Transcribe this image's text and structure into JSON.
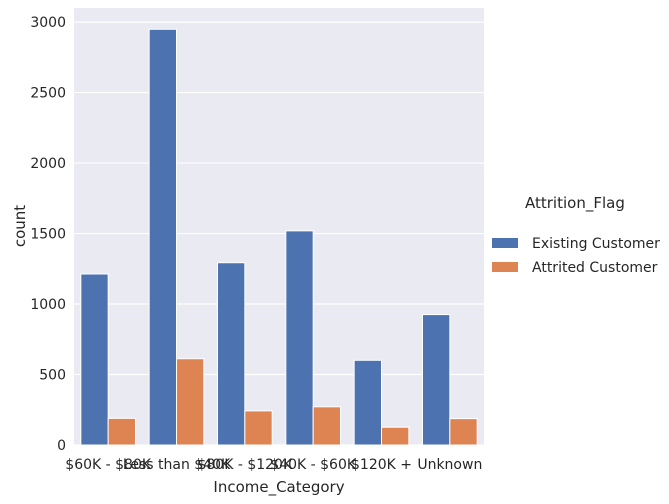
{
  "chart_data": {
    "type": "bar",
    "xlabel": "Income_Category",
    "ylabel": "count",
    "categories": [
      "$60K - $80K",
      "Less than $40K",
      "$80K - $120K",
      "$40K - $60K",
      "$120K +",
      "Unknown"
    ],
    "series": [
      {
        "name": "Existing Customer",
        "values": [
          1213,
          2949,
          1293,
          1519,
          601,
          925
        ],
        "color": "#4c72b0"
      },
      {
        "name": "Attrited Customer",
        "values": [
          189,
          612,
          242,
          271,
          126,
          187
        ],
        "color": "#dd8452"
      }
    ],
    "ylim": [
      0,
      3100
    ],
    "yticks": [
      0,
      500,
      1000,
      1500,
      2000,
      2500,
      3000
    ],
    "legend": {
      "title": "Attrition_Flag",
      "placement": "right"
    },
    "grid": true,
    "background": "#eaeaf2"
  }
}
